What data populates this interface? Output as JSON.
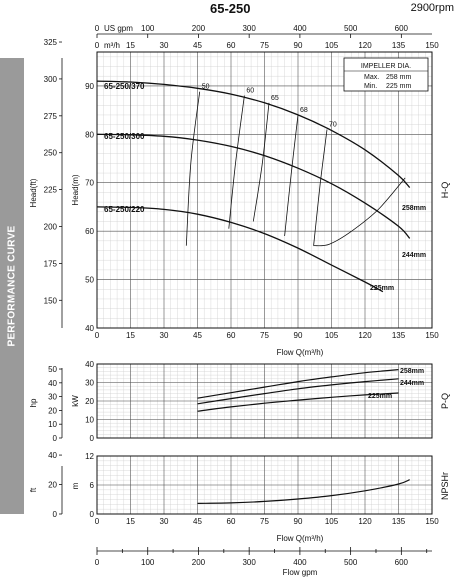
{
  "header": {
    "model": "65-250",
    "speed": "2900rpm"
  },
  "side_label": "PERFORMANCE CURVE",
  "chart_data": [
    {
      "id": "hq",
      "type": "line",
      "xlabel": "Flow Q(m³/h)",
      "ylabel": "Head(m)",
      "ylabel_right": "H-Q",
      "xlim": [
        0,
        150
      ],
      "ylim": [
        40,
        97
      ],
      "x_ticks": [
        "0",
        "15",
        "30",
        "45",
        "60",
        "75",
        "90",
        "105",
        "120",
        "135",
        "150"
      ],
      "y_ticks": [
        "40",
        "50",
        "60",
        "70",
        "80",
        "90"
      ],
      "secondary_y": {
        "label": "Head(ft)",
        "ticks": [
          "150",
          "175",
          "200",
          "225",
          "250",
          "275",
          "300",
          "325"
        ]
      },
      "top_axis_usgpm": {
        "label": "US gpm",
        "ticks": [
          "0",
          "100",
          "200",
          "300",
          "400",
          "500",
          "600"
        ]
      },
      "top_axis_m3h": {
        "label": "m³/h",
        "ticks": [
          "0",
          "15",
          "30",
          "45",
          "60",
          "75",
          "90",
          "105",
          "120",
          "135",
          "150"
        ]
      },
      "legend": {
        "title": "IMPELLER DIA.",
        "rows": [
          [
            "Max.",
            "258 mm"
          ],
          [
            "Min.",
            "225 mm"
          ]
        ]
      },
      "series": [
        {
          "name": "65-250/370",
          "end_label": "258mm",
          "x": [
            0,
            15,
            30,
            45,
            60,
            75,
            90,
            105,
            120,
            135,
            140
          ],
          "y": [
            91,
            90.8,
            90.3,
            89.5,
            88.3,
            86.5,
            84.0,
            80.8,
            76.8,
            71.5,
            69
          ]
        },
        {
          "name": "65-250/300",
          "end_label": "244mm",
          "x": [
            0,
            15,
            30,
            45,
            60,
            75,
            90,
            105,
            120,
            135,
            140
          ],
          "y": [
            80,
            79.9,
            79.6,
            78.8,
            77.5,
            75.6,
            73.0,
            69.8,
            65.8,
            61.0,
            58.5
          ]
        },
        {
          "name": "65-250/220",
          "end_label": "225mm",
          "x": [
            0,
            15,
            30,
            45,
            60,
            75,
            90,
            105,
            120,
            128
          ],
          "y": [
            65,
            64.9,
            64.5,
            63.5,
            61.8,
            59.5,
            56.5,
            53.0,
            49.5,
            47.5
          ]
        }
      ],
      "efficiency_labels": [
        "50",
        "60",
        "65",
        "68",
        "70"
      ],
      "efficiency_lines": [
        {
          "label": "50",
          "x": [
            40,
            42,
            46
          ],
          "y": [
            57,
            74,
            88.8
          ]
        },
        {
          "label": "60",
          "x": [
            59,
            62,
            66
          ],
          "y": [
            60.5,
            74,
            88.0
          ]
        },
        {
          "label": "65",
          "x": [
            70,
            74,
            77
          ],
          "y": [
            62,
            74,
            86.5
          ]
        },
        {
          "label": "68",
          "x": [
            84,
            87,
            90
          ],
          "y": [
            59,
            72,
            84.0
          ]
        },
        {
          "label": "70",
          "x": [
            97,
            100,
            103
          ],
          "y": [
            57,
            70,
            81.0
          ]
        }
      ],
      "bep_curve": {
        "x": [
          97,
          104,
          114,
          126,
          138
        ],
        "y": [
          57,
          57.3,
          60,
          64.5,
          71
        ]
      }
    },
    {
      "id": "pq",
      "type": "line",
      "xlabel": "",
      "ylabel": "kW",
      "ylabel_right": "P-Q",
      "xlim": [
        0,
        150
      ],
      "ylim": [
        0,
        40
      ],
      "x_ticks": [
        "0",
        "15",
        "30",
        "45",
        "60",
        "75",
        "90",
        "105",
        "120",
        "135",
        "150"
      ],
      "y_ticks": [
        "0",
        "10",
        "20",
        "30",
        "40"
      ],
      "secondary_y": {
        "label": "hp",
        "ticks": [
          "0",
          "10",
          "20",
          "30",
          "40",
          "50"
        ]
      },
      "series": [
        {
          "name": "258mm",
          "x": [
            45,
            60,
            75,
            90,
            105,
            120,
            135
          ],
          "y": [
            21.5,
            24.5,
            27.5,
            30.5,
            33.0,
            35.3,
            37.0
          ]
        },
        {
          "name": "244mm",
          "x": [
            45,
            60,
            75,
            90,
            105,
            120,
            135
          ],
          "y": [
            18.5,
            21.3,
            24.0,
            26.6,
            28.7,
            30.5,
            32.0
          ]
        },
        {
          "name": "225mm",
          "x": [
            45,
            60,
            75,
            90,
            105,
            120,
            135
          ],
          "y": [
            14.5,
            16.8,
            18.8,
            20.5,
            22.0,
            23.3,
            24.3
          ]
        }
      ]
    },
    {
      "id": "npshr",
      "type": "line",
      "xlabel": "Flow Q(m³/h)",
      "ylabel": "m",
      "ylabel_right": "NPSHr",
      "xlim": [
        0,
        150
      ],
      "ylim": [
        0,
        12
      ],
      "x_ticks": [
        "0",
        "15",
        "30",
        "45",
        "60",
        "75",
        "90",
        "105",
        "120",
        "135",
        "150"
      ],
      "y_ticks": [
        "0",
        "6",
        "12"
      ],
      "secondary_y": {
        "label": "ft",
        "ticks": [
          "0",
          "20",
          "40"
        ]
      },
      "series": [
        {
          "name": "NPSHr",
          "x": [
            45,
            60,
            75,
            90,
            105,
            120,
            135,
            140
          ],
          "y": [
            2.2,
            2.3,
            2.6,
            3.1,
            3.8,
            4.8,
            6.2,
            7.1
          ]
        }
      ]
    },
    {
      "id": "gpm-axis",
      "type": "axis",
      "xlabel": "Flow  gpm",
      "ticks": [
        "0",
        "100",
        "200",
        "300",
        "400",
        "500",
        "600"
      ]
    }
  ]
}
